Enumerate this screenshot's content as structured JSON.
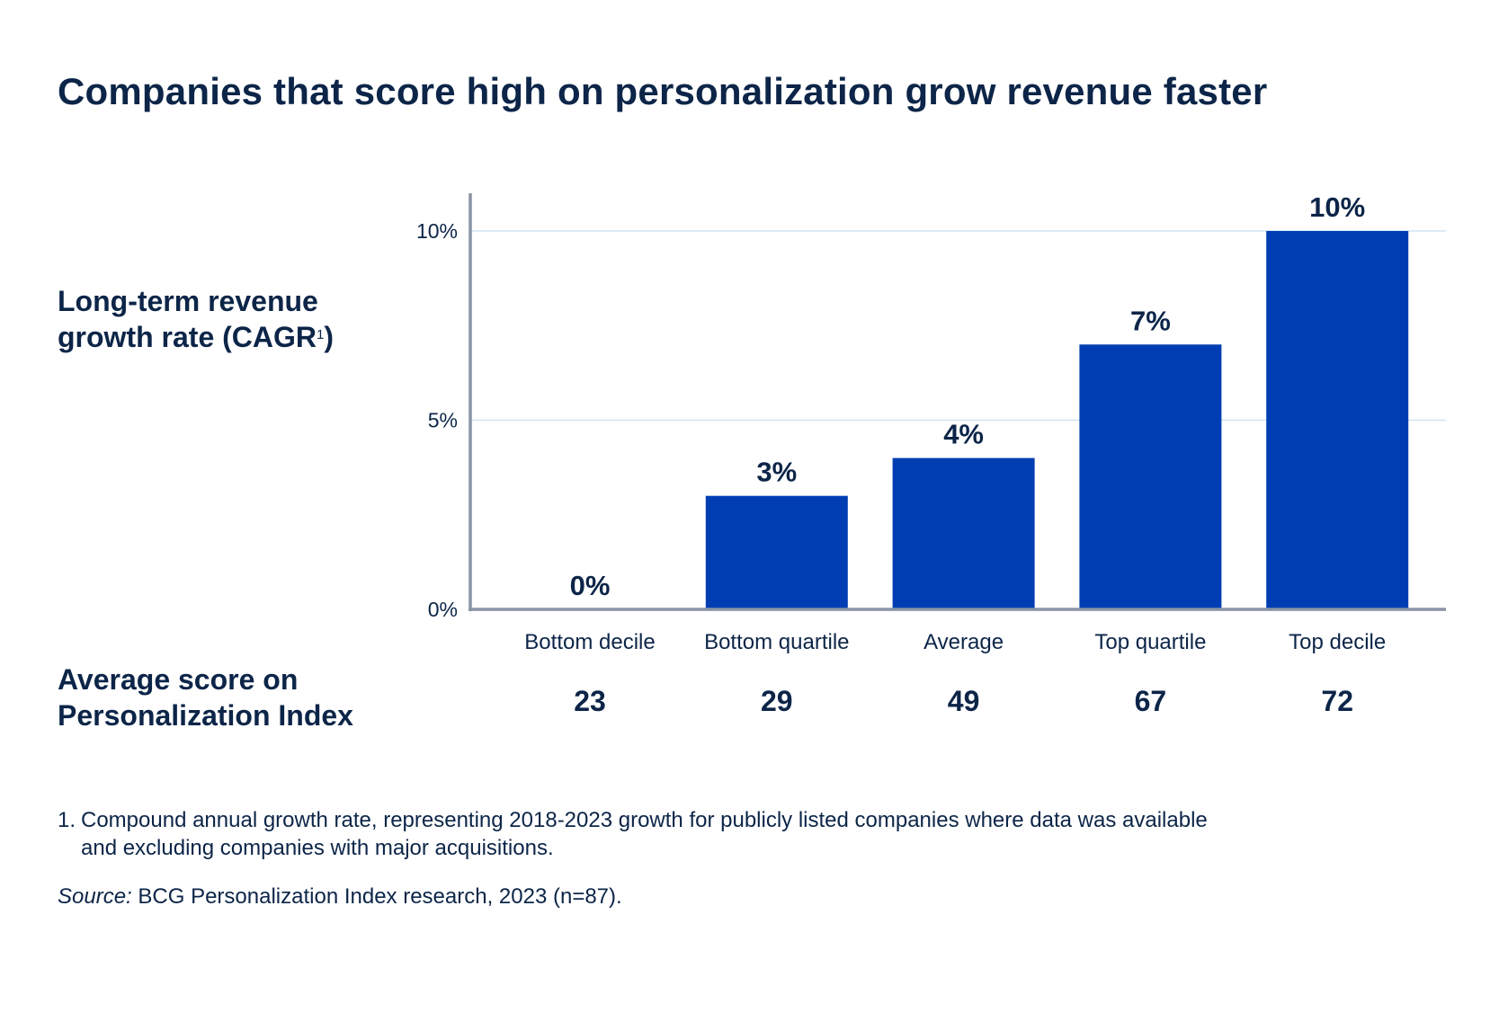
{
  "title": "Companies that score high on personalization grow revenue faster",
  "y_axis_label": {
    "main": "Long-term revenue growth rate (CAGR",
    "superscript": "1",
    "close": ")"
  },
  "score_label": "Average score on Personalization Index",
  "chart_data": {
    "type": "bar",
    "title": "Companies that score high on personalization grow revenue faster",
    "xlabel": "",
    "ylabel": "Long-term revenue growth rate (CAGR1)",
    "categories": [
      "Bottom decile",
      "Bottom quartile",
      "Average",
      "Top quartile",
      "Top decile"
    ],
    "values": [
      0,
      3,
      4,
      7,
      10
    ],
    "value_labels": [
      "0%",
      "3%",
      "4%",
      "7%",
      "10%"
    ],
    "scores": [
      "23",
      "29",
      "49",
      "67",
      "72"
    ],
    "y_ticks": [
      0,
      5,
      10
    ],
    "y_tick_labels": [
      "0%",
      "5%",
      "10%"
    ],
    "ylim": [
      0,
      11
    ],
    "grid": true,
    "bar_color": "#003db3",
    "grid_color": "#cfe4f2",
    "axis_color": "#8a94a6"
  },
  "footnote": {
    "number": "1.",
    "text": "Compound annual growth rate, representing 2018-2023 growth for publicly listed companies where data was available and excluding companies with major acquisitions."
  },
  "source": {
    "label": "Source:",
    "text": " BCG Personalization Index research, 2023 (n=87)."
  }
}
